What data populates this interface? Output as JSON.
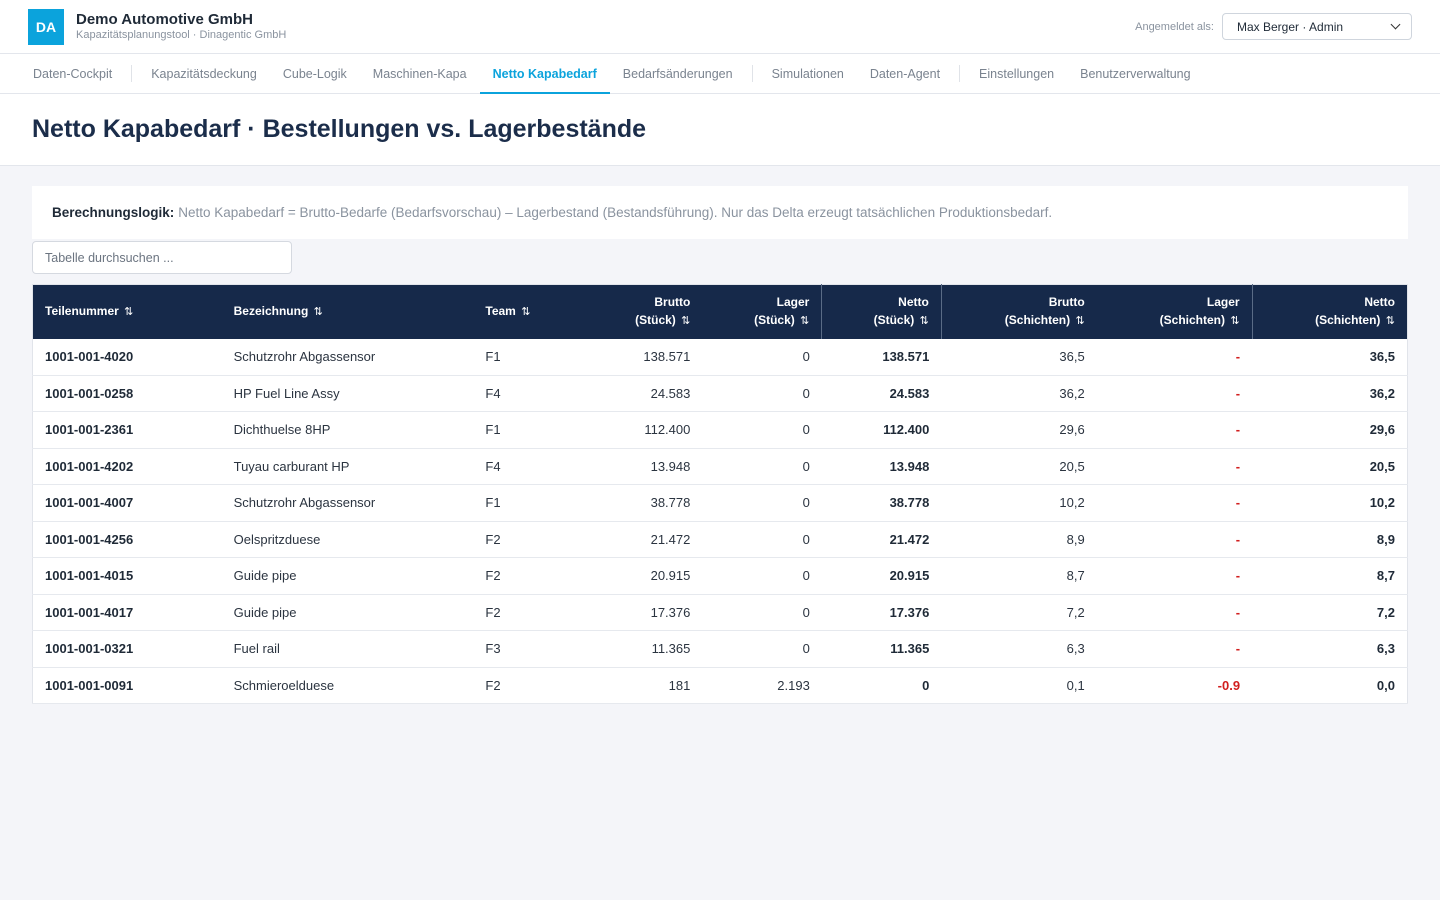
{
  "header": {
    "logo_text": "DA",
    "title": "Demo Automotive GmbH",
    "subtitle": "Kapazitätsplanungstool · Dinagentic GmbH",
    "user_label": "Angemeldet als:",
    "user_value": "Max Berger · Admin"
  },
  "nav": {
    "items": [
      {
        "label": "Daten-Cockpit"
      },
      {
        "label": "Kapazitätsdeckung"
      },
      {
        "label": "Cube-Logik"
      },
      {
        "label": "Maschinen-Kapa"
      },
      {
        "label": "Netto Kapabedarf"
      },
      {
        "label": "Bedarfsänderungen"
      },
      {
        "label": "Simulationen"
      },
      {
        "label": "Daten-Agent"
      },
      {
        "label": "Einstellungen"
      },
      {
        "label": "Benutzerverwaltung"
      }
    ],
    "active": "Netto Kapabedarf"
  },
  "page": {
    "title": "Netto Kapabedarf · Bestellungen vs. Lagerbestände"
  },
  "info": {
    "label": "Berechnungslogik:",
    "text": "Netto Kapabedarf = Brutto-Bedarfe (Bedarfsvorschau) – Lagerbestand (Bestandsführung). Nur das Delta erzeugt tatsächlichen Produktionsbedarf."
  },
  "search": {
    "placeholder": "Tabelle durchsuchen ..."
  },
  "table": {
    "sort_icon": "⇅",
    "columns": [
      {
        "line1": "Teilenummer",
        "line2": ""
      },
      {
        "line1": "Bezeichnung",
        "line2": ""
      },
      {
        "line1": "Team",
        "line2": ""
      },
      {
        "line1": "Brutto",
        "line2": "(Stück)"
      },
      {
        "line1": "Lager",
        "line2": "(Stück)"
      },
      {
        "line1": "Netto",
        "line2": "(Stück)"
      },
      {
        "line1": "Brutto",
        "line2": "(Schichten)"
      },
      {
        "line1": "Lager",
        "line2": "(Schichten)"
      },
      {
        "line1": "Netto",
        "line2": "(Schichten)"
      }
    ],
    "rows": [
      {
        "part": "1001-001-4020",
        "name": "Schutzrohr Abgassensor",
        "team": "F1",
        "brutto_st": "138.571",
        "lager_st": "0",
        "netto_st": "138.571",
        "brutto_sch": "36,5",
        "lager_sch": "-",
        "netto_sch": "36,5"
      },
      {
        "part": "1001-001-0258",
        "name": "HP Fuel Line Assy",
        "team": "F4",
        "brutto_st": "24.583",
        "lager_st": "0",
        "netto_st": "24.583",
        "brutto_sch": "36,2",
        "lager_sch": "-",
        "netto_sch": "36,2"
      },
      {
        "part": "1001-001-2361",
        "name": "Dichthuelse 8HP",
        "team": "F1",
        "brutto_st": "112.400",
        "lager_st": "0",
        "netto_st": "112.400",
        "brutto_sch": "29,6",
        "lager_sch": "-",
        "netto_sch": "29,6"
      },
      {
        "part": "1001-001-4202",
        "name": "Tuyau carburant HP",
        "team": "F4",
        "brutto_st": "13.948",
        "lager_st": "0",
        "netto_st": "13.948",
        "brutto_sch": "20,5",
        "lager_sch": "-",
        "netto_sch": "20,5"
      },
      {
        "part": "1001-001-4007",
        "name": "Schutzrohr Abgassensor",
        "team": "F1",
        "brutto_st": "38.778",
        "lager_st": "0",
        "netto_st": "38.778",
        "brutto_sch": "10,2",
        "lager_sch": "-",
        "netto_sch": "10,2"
      },
      {
        "part": "1001-001-4256",
        "name": "Oelspritzduese",
        "team": "F2",
        "brutto_st": "21.472",
        "lager_st": "0",
        "netto_st": "21.472",
        "brutto_sch": "8,9",
        "lager_sch": "-",
        "netto_sch": "8,9"
      },
      {
        "part": "1001-001-4015",
        "name": "Guide pipe",
        "team": "F2",
        "brutto_st": "20.915",
        "lager_st": "0",
        "netto_st": "20.915",
        "brutto_sch": "8,7",
        "lager_sch": "-",
        "netto_sch": "8,7"
      },
      {
        "part": "1001-001-4017",
        "name": "Guide pipe",
        "team": "F2",
        "brutto_st": "17.376",
        "lager_st": "0",
        "netto_st": "17.376",
        "brutto_sch": "7,2",
        "lager_sch": "-",
        "netto_sch": "7,2"
      },
      {
        "part": "1001-001-0321",
        "name": "Fuel rail",
        "team": "F3",
        "brutto_st": "11.365",
        "lager_st": "0",
        "netto_st": "11.365",
        "brutto_sch": "6,3",
        "lager_sch": "-",
        "netto_sch": "6,3"
      },
      {
        "part": "1001-001-0091",
        "name": "Schmieroelduese",
        "team": "F2",
        "brutto_st": "181",
        "lager_st": "2.193",
        "netto_st": "0",
        "brutto_sch": "0,1",
        "lager_sch": "-0.9",
        "netto_sch": "0,0"
      }
    ]
  },
  "colors": {
    "accent": "#0ba3dc",
    "table_header": "#16294a",
    "negative": "#d11e1e"
  }
}
